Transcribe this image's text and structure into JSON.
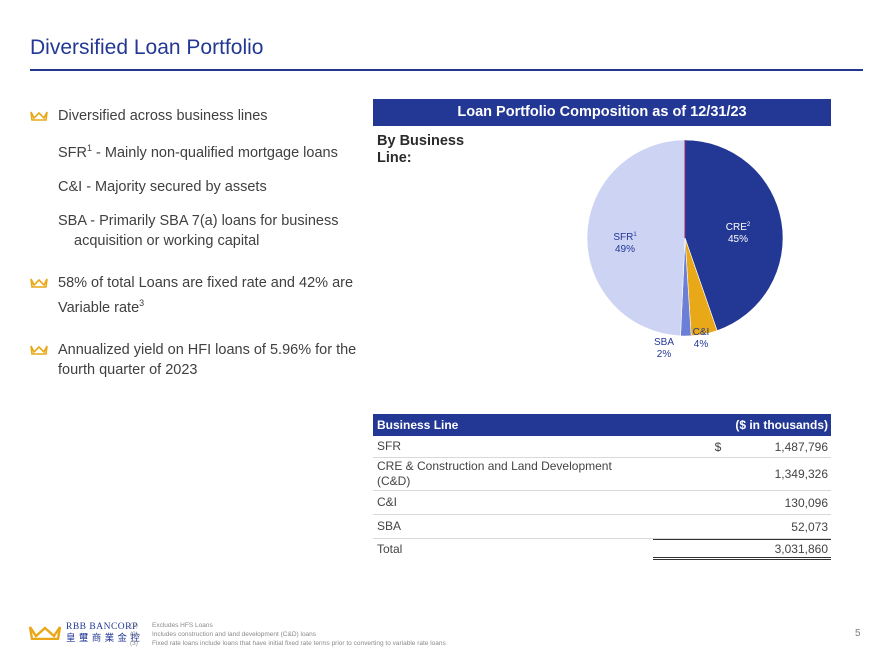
{
  "title": "Diversified Loan Portfolio",
  "bullets": {
    "b1": "Diversified across business lines",
    "sub1_a": "SFR",
    "sub1_sup": "1",
    "sub1_b": " - Mainly non-qualified mortgage loans",
    "sub2": "C&I - Majority secured by assets",
    "sub3_a": "SBA - Primarily SBA 7(a) loans for business",
    "sub3_b": "acquisition or working capital",
    "b2_a": "58% of total Loans are fixed rate and 42% are Variable rate",
    "b2_sup": "3",
    "b3": "Annualized yield on HFI loans of 5.96% for the fourth quarter of 2023"
  },
  "composition": {
    "header": "Loan Portfolio Composition as of 12/31/23",
    "by_line_a": "By Business",
    "by_line_b": "Line:"
  },
  "chart_data": {
    "type": "pie",
    "slices": [
      {
        "label": "CRE",
        "sup": "2",
        "percent": "45%",
        "value": 1349326,
        "color": "#233894"
      },
      {
        "label": "C&I",
        "sup": "",
        "percent": "4%",
        "value": 130096,
        "color": "#e8a817"
      },
      {
        "label": "SBA",
        "sup": "",
        "percent": "2%",
        "value": 52073,
        "color": "#6b7fd6"
      },
      {
        "label": "SFR",
        "sup": "1",
        "percent": "49%",
        "value": 1487796,
        "color": "#ccd3f3"
      }
    ]
  },
  "table": {
    "col1": "Business Line",
    "col2": "($ in thousands)",
    "rows": [
      {
        "label": "SFR",
        "dollar": "$",
        "value": "1,487,796"
      },
      {
        "label": "CRE  & Construction and Land Development (C&D)",
        "dollar": "",
        "value": "1,349,326"
      },
      {
        "label": "C&I",
        "dollar": "",
        "value": "130,096"
      },
      {
        "label": "SBA",
        "dollar": "",
        "value": "52,073"
      },
      {
        "label": "Total",
        "dollar": "",
        "value": "3,031,860"
      }
    ]
  },
  "footer": {
    "brand_en": "RBB BANCORP",
    "brand_cn": "皇 璽 商 業 金 控",
    "notes": [
      {
        "n": "(1)",
        "text": "Excludes HFS Loans"
      },
      {
        "n": "(2)",
        "text": "Includes construction and land development (C&D) loans"
      },
      {
        "n": "(3)",
        "text": "Fixed rate loans include loans that have initial fixed rate terms prior to converting to variable rate loans"
      }
    ],
    "page": "5"
  },
  "colors": {
    "brand_blue": "#233894",
    "gold": "#e8a817"
  }
}
